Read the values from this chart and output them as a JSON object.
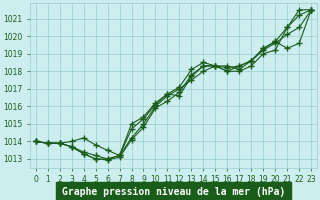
{
  "x": [
    0,
    1,
    2,
    3,
    4,
    5,
    6,
    7,
    8,
    9,
    10,
    11,
    12,
    13,
    14,
    15,
    16,
    17,
    18,
    19,
    20,
    21,
    22,
    23
  ],
  "series": [
    [
      1014.0,
      1013.9,
      1013.9,
      1013.7,
      1013.4,
      1013.2,
      1013.0,
      1013.2,
      1014.2,
      1015.0,
      1016.0,
      1016.6,
      1017.0,
      1017.5,
      1018.0,
      1018.3,
      1018.3,
      1018.1,
      1018.6,
      1019.3,
      1019.7,
      1020.5,
      1021.5,
      1021.5
    ],
    [
      1014.0,
      1013.9,
      1013.9,
      1014.0,
      1014.2,
      1013.8,
      1013.5,
      1013.2,
      1014.7,
      1015.3,
      1016.1,
      1016.7,
      1016.6,
      1017.7,
      1018.3,
      1018.3,
      1018.0,
      1018.0,
      1018.3,
      1019.0,
      1019.2,
      1020.5,
      1021.2,
      1021.5
    ],
    [
      1014.0,
      1013.9,
      1013.9,
      1013.7,
      1013.3,
      1013.0,
      1012.95,
      1013.1,
      1014.1,
      1014.8,
      1015.9,
      1016.3,
      1016.8,
      1017.8,
      1018.3,
      1018.3,
      1018.0,
      1018.3,
      1018.6,
      1019.2,
      1019.6,
      1020.1,
      1020.5,
      1021.5
    ],
    [
      1014.0,
      1013.9,
      1013.9,
      1013.7,
      1013.3,
      1013.0,
      1013.0,
      1013.2,
      1015.0,
      1015.4,
      1016.2,
      1016.7,
      1017.1,
      1018.1,
      1018.5,
      1018.3,
      1018.2,
      1018.3,
      1018.6,
      1019.3,
      1019.7,
      1019.3,
      1019.6,
      1021.5
    ]
  ],
  "bg_color": "#cceeee",
  "grid_color": "#99cccc",
  "line_color": "#1a5c1a",
  "marker": "+",
  "markersize": 4,
  "markeredgewidth": 1.0,
  "linewidth": 0.8,
  "ylabel_ticks": [
    1013,
    1014,
    1015,
    1016,
    1017,
    1018,
    1019,
    1020,
    1021
  ],
  "ylim": [
    1012.5,
    1021.9
  ],
  "xlim": [
    -0.5,
    23.5
  ],
  "xlabel": "Graphe pression niveau de la mer (hPa)",
  "xlabel_fontsize": 7.0,
  "xlabel_color": "#1a5c1a",
  "tick_fontsize": 5.5,
  "tick_color": "#1a5c1a",
  "label_bg_color": "#1a5c1a"
}
